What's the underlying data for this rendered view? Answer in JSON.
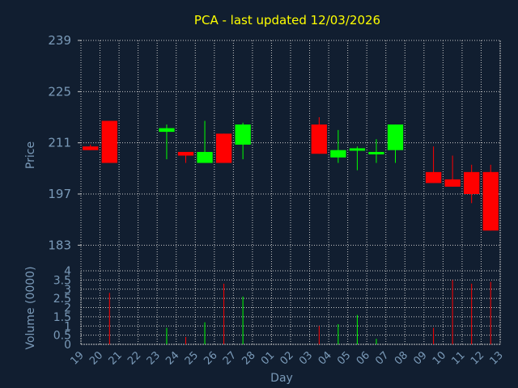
{
  "chart_data": {
    "type": "candlestick",
    "title": "PCA - last updated 12/03/2026",
    "xlabel": "Day",
    "price_panel": {
      "ylabel": "Price",
      "ylim": [
        176,
        239
      ],
      "yticks": [
        183,
        197,
        211,
        225,
        239
      ],
      "grid": true
    },
    "volume_panel": {
      "ylabel": "Volume (0000)",
      "ylim": [
        0,
        4
      ],
      "yticks": [
        0,
        0.5,
        1,
        1.5,
        2,
        2.5,
        3,
        3.5,
        4
      ],
      "ytick_labels": [
        "0",
        "0.5",
        "1",
        "1.5",
        "2",
        "2.5",
        "3",
        "3.5",
        "4"
      ],
      "grid": true
    },
    "x_tick_labels": [
      "19",
      "20",
      "21",
      "22",
      "23",
      "24",
      "25",
      "26",
      "27",
      "28",
      "01",
      "02",
      "03",
      "04",
      "05",
      "06",
      "07",
      "08",
      "09",
      "10",
      "11",
      "12",
      "13"
    ],
    "candles": [
      {
        "x": 0,
        "open": 210.0,
        "high": 210.5,
        "low": 209.0,
        "close": 209.0,
        "volume": 0.0
      },
      {
        "x": 1,
        "open": 217.0,
        "high": 217.0,
        "low": 205.5,
        "close": 205.5,
        "volume": 2.8
      },
      {
        "x": 4,
        "open": 214.0,
        "high": 216.0,
        "low": 206.5,
        "close": 215.0,
        "volume": 0.9
      },
      {
        "x": 5,
        "open": 208.5,
        "high": 208.5,
        "low": 205.5,
        "close": 207.5,
        "volume": 0.4
      },
      {
        "x": 6,
        "open": 205.5,
        "high": 217.0,
        "low": 205.5,
        "close": 208.5,
        "volume": 1.2
      },
      {
        "x": 7,
        "open": 213.5,
        "high": 213.5,
        "low": 205.5,
        "close": 205.5,
        "volume": 3.3
      },
      {
        "x": 8,
        "open": 210.5,
        "high": 216.5,
        "low": 206.5,
        "close": 216.0,
        "volume": 2.6
      },
      {
        "x": 12,
        "open": 216.0,
        "high": 218.0,
        "low": 208.0,
        "close": 208.0,
        "volume": 1.0
      },
      {
        "x": 13,
        "open": 207.0,
        "high": 214.5,
        "low": 205.5,
        "close": 209.0,
        "volume": 1.1
      },
      {
        "x": 14,
        "open": 209.0,
        "high": 210.0,
        "low": 203.5,
        "close": 209.5,
        "volume": 1.6
      },
      {
        "x": 15,
        "open": 208.0,
        "high": 212.0,
        "low": 205.5,
        "close": 208.5,
        "volume": 0.3
      },
      {
        "x": 16,
        "open": 209.0,
        "high": 216.0,
        "low": 205.5,
        "close": 216.0,
        "volume": 0.0
      },
      {
        "x": 18,
        "open": 203.0,
        "high": 210.0,
        "low": 200.0,
        "close": 200.0,
        "volume": 0.9
      },
      {
        "x": 19,
        "open": 201.0,
        "high": 207.5,
        "low": 199.0,
        "close": 199.0,
        "volume": 3.5
      },
      {
        "x": 20,
        "open": 203.0,
        "high": 205.0,
        "low": 194.5,
        "close": 197.0,
        "volume": 3.3
      },
      {
        "x": 21,
        "open": 203.0,
        "high": 205.0,
        "low": 187.0,
        "close": 187.0,
        "volume": 3.4
      }
    ],
    "colors": {
      "background": "#111e30",
      "up": "#00ff00",
      "down": "#ff0000",
      "grid": "#c8c8c8",
      "axis_text": "#7a9ab8",
      "title": "#ffff00"
    }
  }
}
